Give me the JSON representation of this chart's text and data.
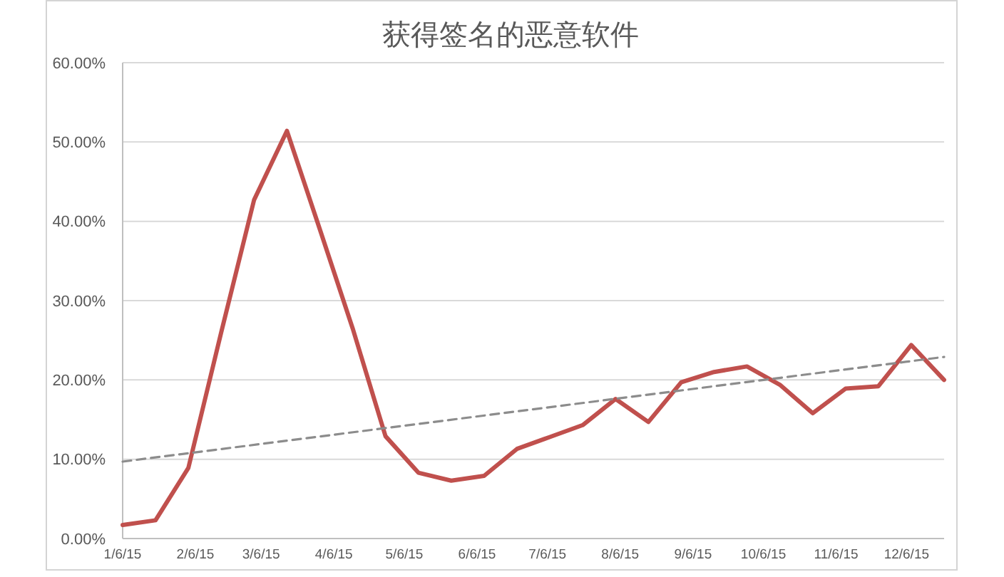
{
  "chart_data": {
    "type": "line",
    "title": "获得签名的恶意软件",
    "x": [
      "2015-01-06",
      "2015-01-20",
      "2015-02-03",
      "2015-02-17",
      "2015-03-03",
      "2015-03-17",
      "2015-03-31",
      "2015-04-14",
      "2015-04-28",
      "2015-05-12",
      "2015-05-26",
      "2015-06-09",
      "2015-06-23",
      "2015-07-07",
      "2015-07-21",
      "2015-08-04",
      "2015-08-18",
      "2015-09-01",
      "2015-09-15",
      "2015-09-29",
      "2015-10-13",
      "2015-10-27",
      "2015-11-10",
      "2015-11-24",
      "2015-12-08",
      "2015-12-22"
    ],
    "series": [
      {
        "color": "#c0504d",
        "values": [
          1.7,
          2.3,
          8.9,
          26,
          42.7,
          51.4,
          39,
          26.5,
          12.9,
          8.3,
          7.3,
          7.9,
          11.3,
          12.8,
          14.3,
          17.6,
          14.7,
          19.7,
          21,
          21.7,
          19.4,
          15.8,
          18.9,
          19.2,
          24.4,
          20
        ]
      },
      {
        "type": "line",
        "color": "#8c8c8c",
        "line_style": "dashed",
        "x": [
          "2015-01-06",
          "2015-12-22"
        ],
        "values": [
          9.7,
          22.9
        ]
      }
    ],
    "xlim": [
      "2015-01-06",
      "2015-12-22"
    ],
    "xticks": [
      {
        "value": "2015-01-06",
        "label": "1/6/15"
      },
      {
        "value": "2015-02-06",
        "label": "2/6/15"
      },
      {
        "value": "2015-03-06",
        "label": "3/6/15"
      },
      {
        "value": "2015-04-06",
        "label": "4/6/15"
      },
      {
        "value": "2015-05-06",
        "label": "5/6/15"
      },
      {
        "value": "2015-06-06",
        "label": "6/6/15"
      },
      {
        "value": "2015-07-06",
        "label": "7/6/15"
      },
      {
        "value": "2015-08-06",
        "label": "8/6/15"
      },
      {
        "value": "2015-09-06",
        "label": "9/6/15"
      },
      {
        "value": "2015-10-06",
        "label": "10/6/15"
      },
      {
        "value": "2015-11-06",
        "label": "11/6/15"
      },
      {
        "value": "2015-12-06",
        "label": "12/6/15"
      }
    ],
    "ylim": [
      0,
      60
    ],
    "yticks": [
      {
        "value": 0,
        "label": "0.00%"
      },
      {
        "value": 10,
        "label": "10.00%"
      },
      {
        "value": 20,
        "label": "20.00%"
      },
      {
        "value": 30,
        "label": "30.00%"
      },
      {
        "value": 40,
        "label": "40.00%"
      },
      {
        "value": 50,
        "label": "50.00%"
      },
      {
        "value": 60,
        "label": "60.00%"
      }
    ],
    "grid": "y",
    "line_style": "solid"
  }
}
